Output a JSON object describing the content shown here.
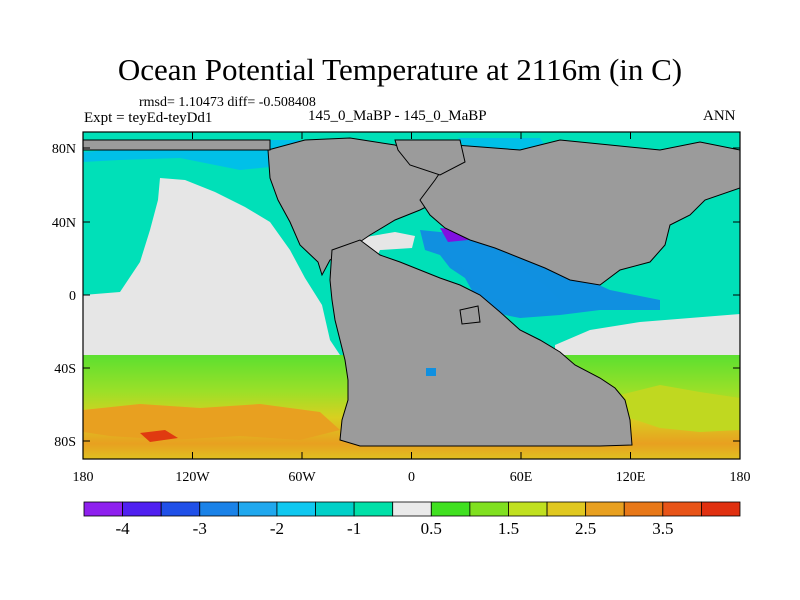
{
  "figure": {
    "title": "Ocean Potential Temperature at 2116m (in C)",
    "stats": "rmsd= 1.10473 diff= -0.508408",
    "left_label": "Expt = teyEd-teyDd1",
    "center_label": "145_0_MaBP - 145_0_MaBP",
    "right_label": "ANN"
  },
  "map": {
    "lat_ticks": [
      "80N",
      "40N",
      "0",
      "40S",
      "80S"
    ],
    "lon_ticks": [
      "180",
      "120W",
      "60W",
      "0",
      "60E",
      "120E",
      "180"
    ],
    "colors": {
      "land": "#9b9b9b",
      "near_zero": "#e6e6e6",
      "cool": "#00e0b8",
      "cold": "#00c0e8",
      "colder": "#1090e0",
      "coldest": "#4050e0",
      "min": "#8010e0",
      "warm": "#4ce030",
      "warmer": "#c0d820",
      "hot": "#e8a020",
      "hottest": "#e03a10"
    }
  },
  "colorbar": {
    "labels": [
      "-4",
      "-3",
      "-2",
      "-1",
      "0.5",
      "1.5",
      "2.5",
      "3.5"
    ],
    "colors": [
      "#8e20ee",
      "#5020f0",
      "#2050e8",
      "#1a82e8",
      "#20a8ee",
      "#10c8f0",
      "#00d0c8",
      "#00e0a8",
      "#eaeaea",
      "#40e020",
      "#80e020",
      "#c0e020",
      "#e0c820",
      "#e8a020",
      "#e87818",
      "#e85418",
      "#e03010"
    ]
  }
}
